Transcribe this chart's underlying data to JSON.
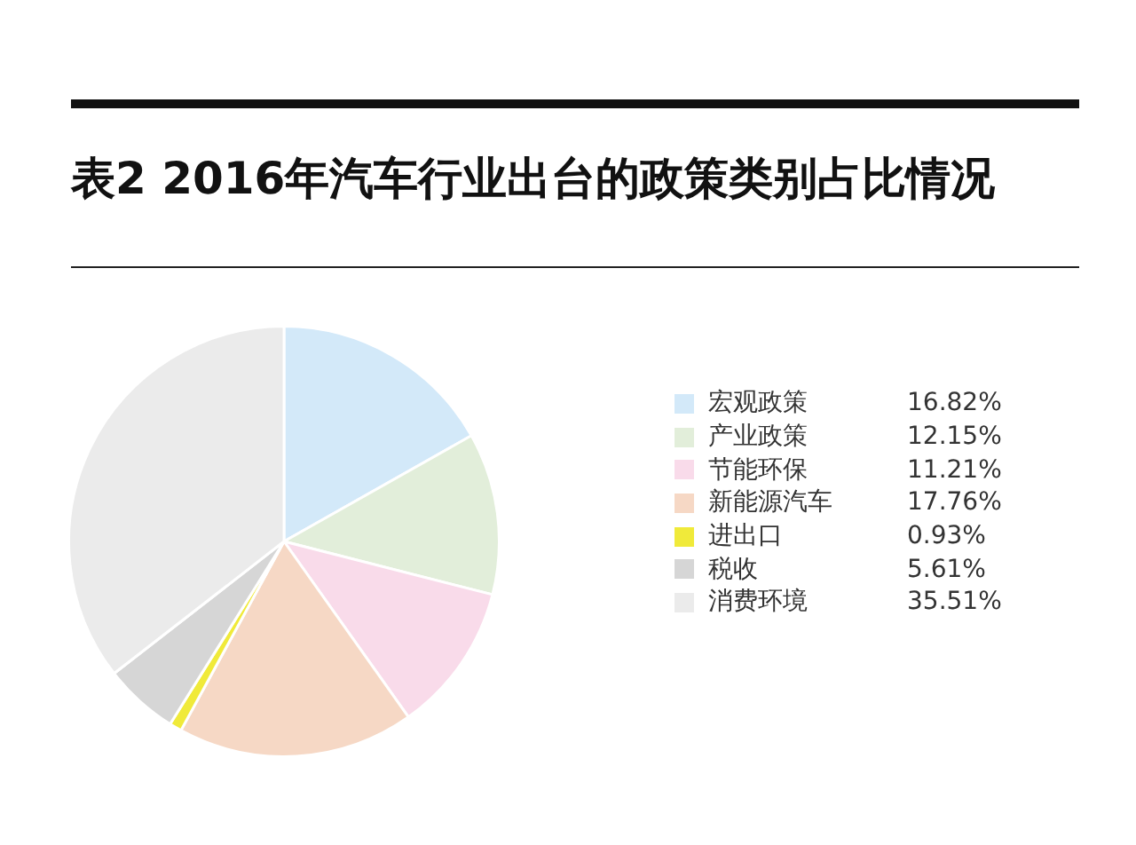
{
  "chart_data": {
    "type": "pie",
    "title": "表2 2016年汽车行业出台的政策类别占比情况",
    "categories": [
      "宏观政策",
      "产业政策",
      "节能环保",
      "新能源汽车",
      "进出口",
      "税收",
      "消费环境"
    ],
    "values": [
      16.82,
      12.15,
      11.21,
      17.76,
      0.93,
      5.61,
      35.51
    ],
    "value_labels": [
      "16.82%",
      "12.15%",
      "11.21%",
      "17.76%",
      "0.93%",
      "5.61%",
      "35.51%"
    ],
    "colors": [
      "#d3e9f9",
      "#e2eeda",
      "#f9dbea",
      "#f6d8c5",
      "#f0ea3a",
      "#d6d6d6",
      "#ebebeb"
    ],
    "legend": "right"
  }
}
